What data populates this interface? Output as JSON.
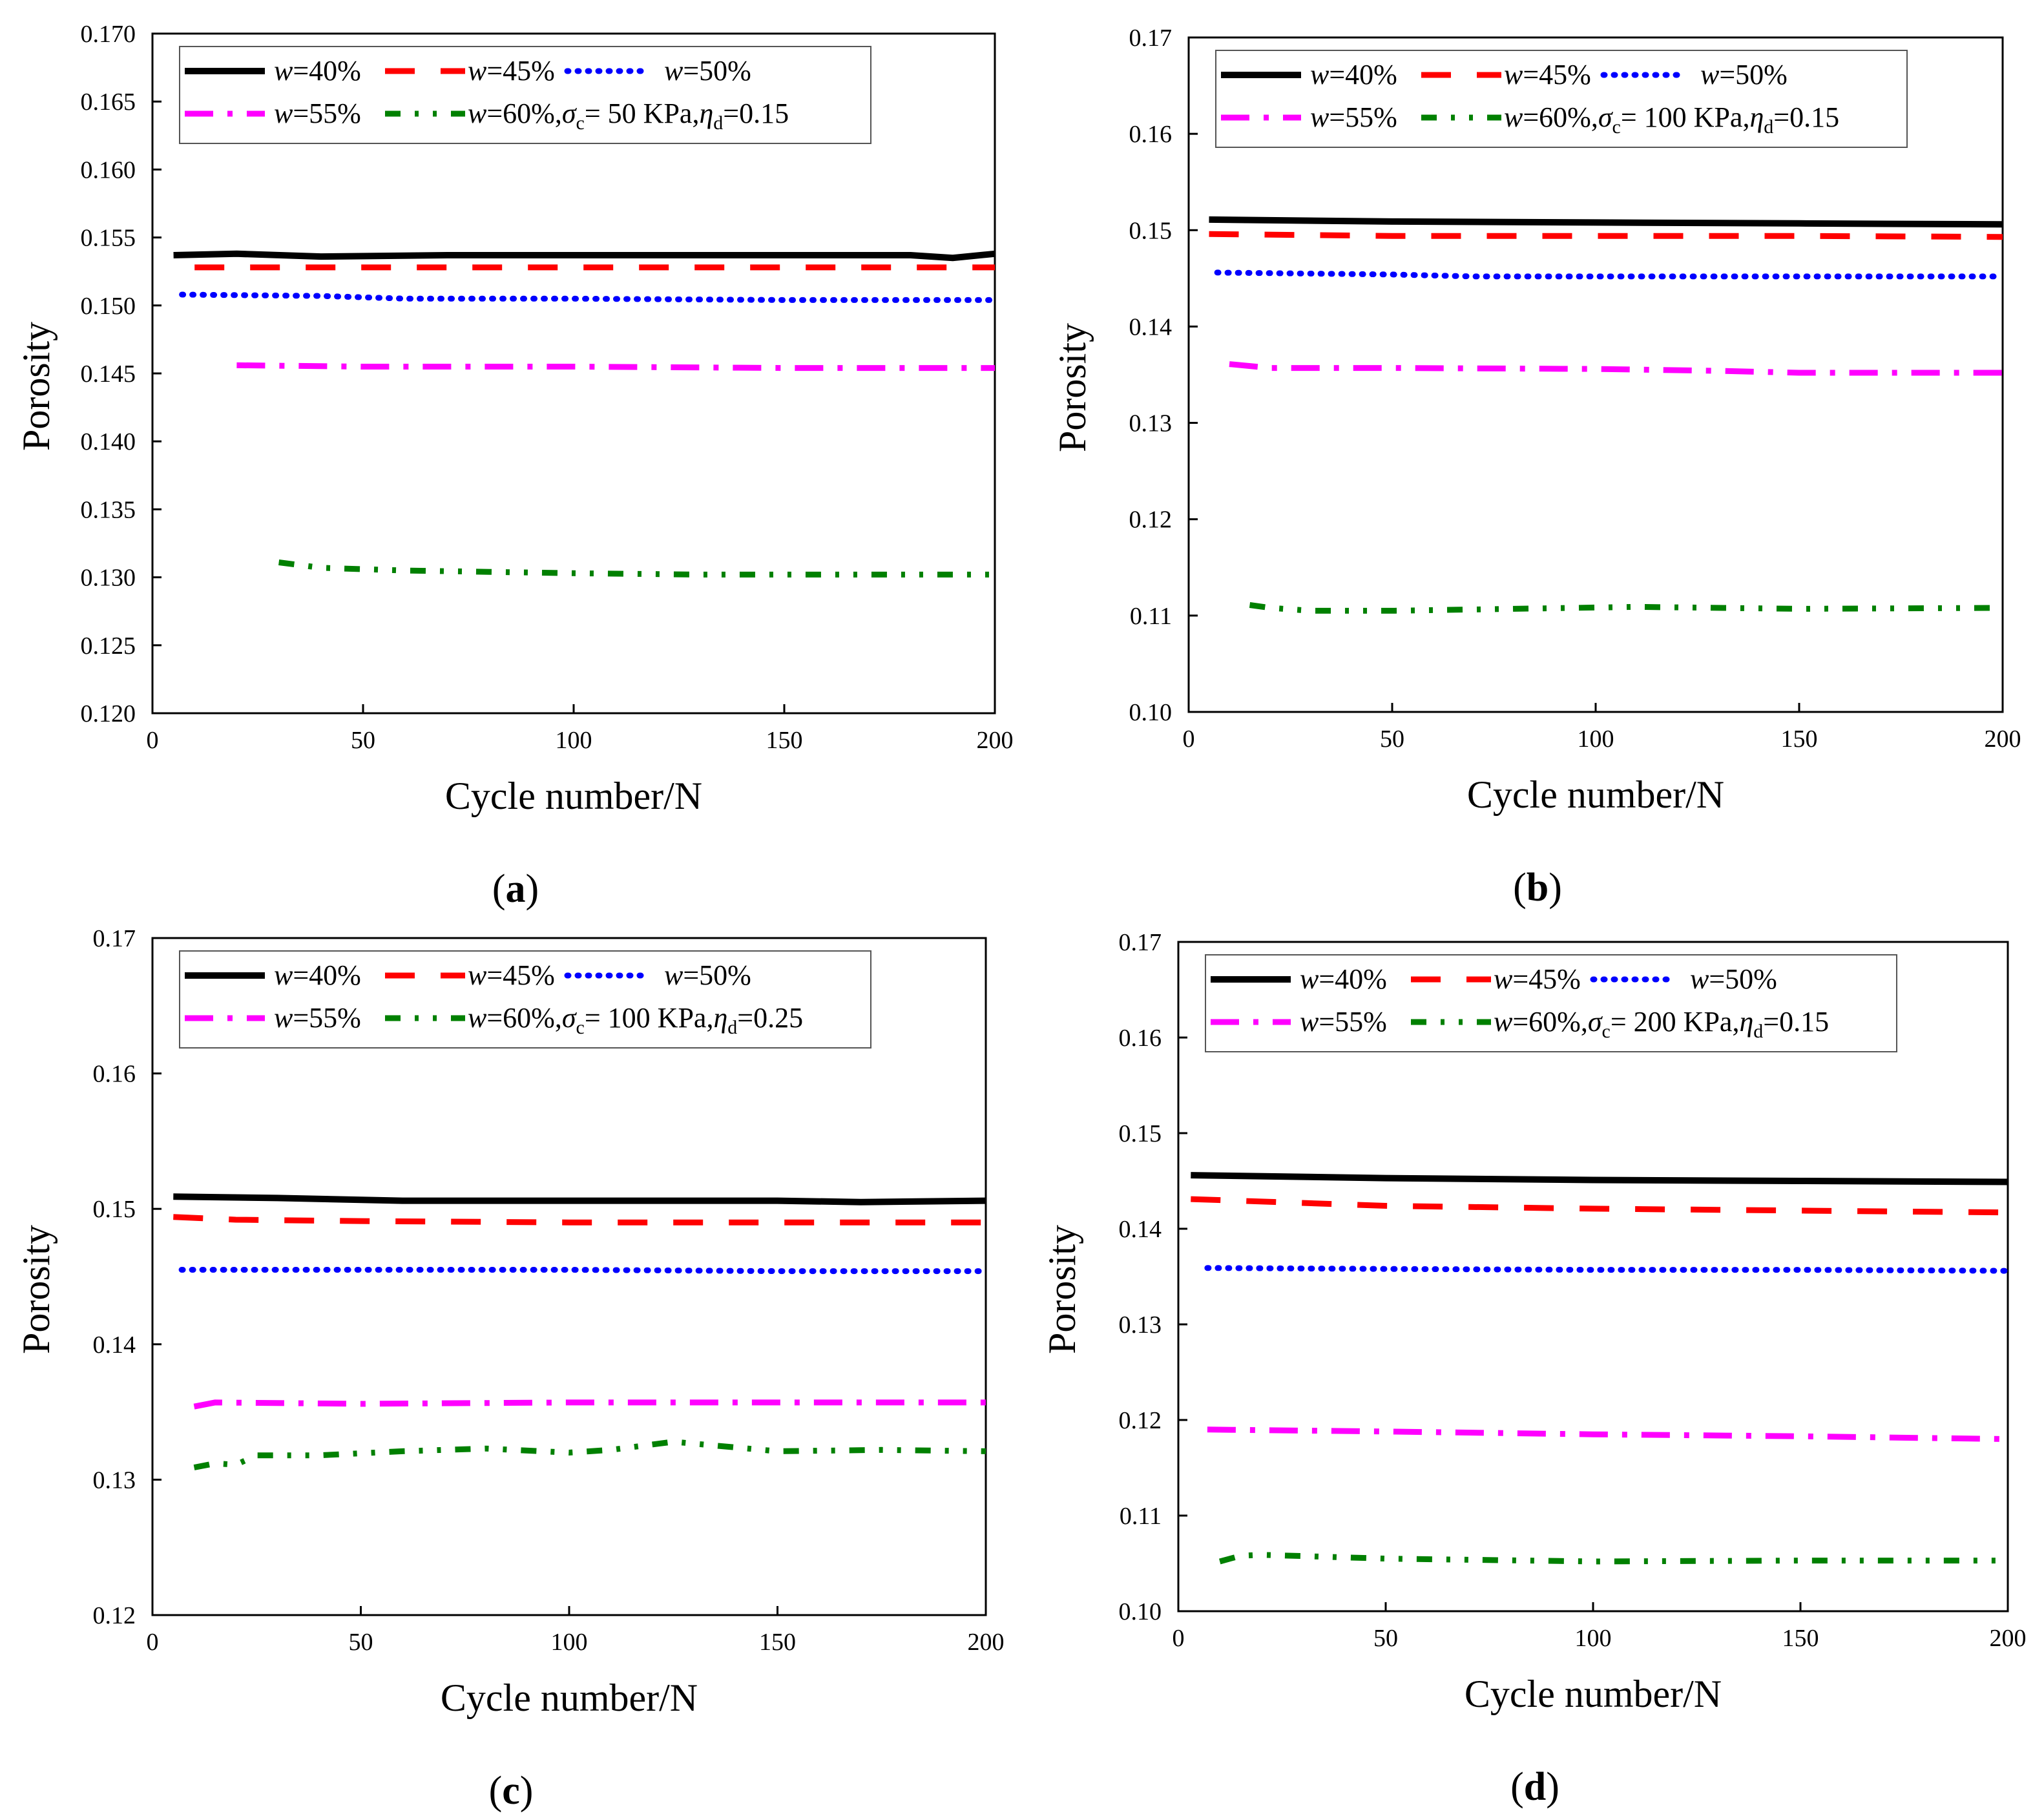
{
  "chart_data": [
    {
      "type": "line",
      "panel": "a",
      "panel_label": "a",
      "xlabel": "Cycle number/N",
      "ylabel": "Porosity",
      "xlim": [
        0,
        200
      ],
      "ylim": [
        0.12,
        0.17
      ],
      "xticks": [
        0,
        50,
        100,
        150,
        200
      ],
      "xtick_labels": [
        "0",
        "50",
        "100",
        "150",
        "200"
      ],
      "yticks": [
        0.12,
        0.125,
        0.13,
        0.135,
        0.14,
        0.145,
        0.15,
        0.155,
        0.16,
        0.165,
        0.17
      ],
      "ytick_labels": [
        "0.120",
        "0.125",
        "0.130",
        "0.135",
        "0.140",
        "0.145",
        "0.150",
        "0.155",
        "0.160",
        "0.165",
        "0.170"
      ],
      "condition": {
        "sigma_c": "50 KPa",
        "eta_d": "0.15"
      },
      "legend": {
        "position": "top",
        "condition_text": ",σc= 50 KPa,ηd=0.15",
        "entries": [
          "w=40%",
          "w=45%",
          "w=50%",
          "w=55%",
          "w=60%"
        ]
      },
      "series": [
        {
          "name": "w=40%",
          "color": "#000000",
          "style": "solid",
          "x": [
            5,
            20,
            40,
            70,
            100,
            150,
            180,
            190,
            200
          ],
          "y": [
            0.1537,
            0.1538,
            0.1536,
            0.1537,
            0.1537,
            0.1537,
            0.1537,
            0.1535,
            0.1538
          ]
        },
        {
          "name": "w=45%",
          "color": "#ff0000",
          "style": "dash",
          "x": [
            10,
            50,
            100,
            150,
            200
          ],
          "y": [
            0.1528,
            0.1528,
            0.1528,
            0.1528,
            0.1528
          ]
        },
        {
          "name": "w=50%",
          "color": "#0000ff",
          "style": "dot",
          "x": [
            7,
            40,
            60,
            100,
            150,
            200
          ],
          "y": [
            0.1508,
            0.1507,
            0.1505,
            0.1505,
            0.1504,
            0.1504
          ]
        },
        {
          "name": "w=55%",
          "color": "#ff00ff",
          "style": "dashdot",
          "x": [
            20,
            50,
            100,
            150,
            200
          ],
          "y": [
            0.1456,
            0.1455,
            0.1455,
            0.1454,
            0.1454
          ]
        },
        {
          "name": "w=60%",
          "color": "#008000",
          "style": "dashdotdot",
          "x": [
            30,
            40,
            60,
            80,
            100,
            130,
            160,
            200
          ],
          "y": [
            0.1311,
            0.1307,
            0.1305,
            0.1304,
            0.1303,
            0.1302,
            0.1302,
            0.1302
          ]
        }
      ]
    },
    {
      "type": "line",
      "panel": "b",
      "panel_label": "b",
      "xlabel": "Cycle number/N",
      "ylabel": "Porosity",
      "xlim": [
        0,
        200
      ],
      "ylim": [
        0.1,
        0.17
      ],
      "xticks": [
        0,
        50,
        100,
        150,
        200
      ],
      "xtick_labels": [
        "0",
        "50",
        "100",
        "150",
        "200"
      ],
      "yticks": [
        0.1,
        0.11,
        0.12,
        0.13,
        0.14,
        0.15,
        0.16,
        0.17
      ],
      "ytick_labels": [
        "0.10",
        "0.11",
        "0.12",
        "0.13",
        "0.14",
        "0.15",
        "0.16",
        "0.17"
      ],
      "condition": {
        "sigma_c": "100 KPa",
        "eta_d": "0.15"
      },
      "legend": {
        "position": "top",
        "condition_text": ",σc= 100 KPa,ηd=0.15",
        "entries": [
          "w=40%",
          "w=45%",
          "w=50%",
          "w=55%",
          "w=60%"
        ]
      },
      "series": [
        {
          "name": "w=40%",
          "color": "#000000",
          "style": "solid",
          "x": [
            5,
            50,
            100,
            150,
            200
          ],
          "y": [
            0.1511,
            0.1509,
            0.1508,
            0.1507,
            0.1506
          ]
        },
        {
          "name": "w=45%",
          "color": "#ff0000",
          "style": "dash",
          "x": [
            5,
            50,
            100,
            150,
            200
          ],
          "y": [
            0.1496,
            0.1494,
            0.1494,
            0.1494,
            0.1493
          ]
        },
        {
          "name": "w=50%",
          "color": "#0000ff",
          "style": "dot",
          "x": [
            7,
            50,
            70,
            100,
            150,
            200
          ],
          "y": [
            0.1456,
            0.1454,
            0.1452,
            0.1452,
            0.1452,
            0.1452
          ]
        },
        {
          "name": "w=55%",
          "color": "#ff00ff",
          "style": "dashdot",
          "x": [
            10,
            20,
            50,
            100,
            130,
            150,
            200
          ],
          "y": [
            0.1361,
            0.1357,
            0.1357,
            0.1356,
            0.1354,
            0.1352,
            0.1352
          ]
        },
        {
          "name": "w=60%",
          "color": "#008000",
          "style": "dashdotdot",
          "x": [
            15,
            20,
            30,
            50,
            80,
            110,
            150,
            200
          ],
          "y": [
            0.1111,
            0.1108,
            0.1105,
            0.1105,
            0.1107,
            0.1109,
            0.1107,
            0.1108
          ]
        }
      ]
    },
    {
      "type": "line",
      "panel": "c",
      "panel_label": "c",
      "xlabel": "Cycle number/N",
      "ylabel": "Porosity",
      "xlim": [
        0,
        200
      ],
      "ylim": [
        0.12,
        0.17
      ],
      "xticks": [
        0,
        50,
        100,
        150,
        200
      ],
      "xtick_labels": [
        "0",
        "50",
        "100",
        "150",
        "200"
      ],
      "yticks": [
        0.12,
        0.13,
        0.14,
        0.15,
        0.16,
        0.17
      ],
      "ytick_labels": [
        "0.12",
        "0.13",
        "0.14",
        "0.15",
        "0.16",
        "0.17"
      ],
      "condition": {
        "sigma_c": "100 KPa",
        "eta_d": "0.25"
      },
      "legend": {
        "position": "top",
        "condition_text": ",σc= 100 KPa,ηd=0.25",
        "entries": [
          "w=40%",
          "w=45%",
          "w=50%",
          "w=55%",
          "w=60%"
        ]
      },
      "series": [
        {
          "name": "w=40%",
          "color": "#000000",
          "style": "solid",
          "x": [
            5,
            30,
            60,
            100,
            150,
            170,
            200
          ],
          "y": [
            0.1509,
            0.1508,
            0.1506,
            0.1506,
            0.1506,
            0.1505,
            0.1506
          ]
        },
        {
          "name": "w=45%",
          "color": "#ff0000",
          "style": "dash",
          "x": [
            5,
            20,
            50,
            100,
            150,
            200
          ],
          "y": [
            0.1494,
            0.1492,
            0.1491,
            0.149,
            0.149,
            0.149
          ]
        },
        {
          "name": "w=50%",
          "color": "#0000ff",
          "style": "dot",
          "x": [
            7,
            50,
            100,
            150,
            200
          ],
          "y": [
            0.1455,
            0.1455,
            0.1455,
            0.1454,
            0.1454
          ]
        },
        {
          "name": "w=55%",
          "color": "#ff00ff",
          "style": "dashdot",
          "x": [
            10,
            15,
            50,
            100,
            150,
            200
          ],
          "y": [
            0.1354,
            0.1357,
            0.1356,
            0.1357,
            0.1357,
            0.1357
          ]
        },
        {
          "name": "w=60%",
          "color": "#008000",
          "style": "dashdotdot",
          "x": [
            10,
            15,
            20,
            25,
            40,
            60,
            80,
            100,
            110,
            125,
            150,
            175,
            200
          ],
          "y": [
            0.1309,
            0.1312,
            0.1311,
            0.1318,
            0.1318,
            0.1321,
            0.1323,
            0.132,
            0.1322,
            0.1328,
            0.1321,
            0.1322,
            0.1321
          ]
        }
      ]
    },
    {
      "type": "line",
      "panel": "d",
      "panel_label": "d",
      "xlabel": "Cycle number/N",
      "ylabel": "Porosity",
      "xlim": [
        0,
        200
      ],
      "ylim": [
        0.1,
        0.17
      ],
      "xticks": [
        0,
        50,
        100,
        150,
        200
      ],
      "xtick_labels": [
        "0",
        "50",
        "100",
        "150",
        "200"
      ],
      "yticks": [
        0.1,
        0.11,
        0.12,
        0.13,
        0.14,
        0.15,
        0.16,
        0.17
      ],
      "ytick_labels": [
        "0.10",
        "0.11",
        "0.12",
        "0.13",
        "0.14",
        "0.15",
        "0.16",
        "0.17"
      ],
      "condition": {
        "sigma_c": "200 KPa",
        "eta_d": "0.15"
      },
      "legend": {
        "position": "top",
        "condition_text": ",σc=200 KPa,ηd=0.15",
        "entries": [
          "w=40%",
          "w=45%",
          "w=50%",
          "w=55%",
          "w=60%"
        ]
      },
      "series": [
        {
          "name": "w=40%",
          "color": "#000000",
          "style": "solid",
          "x": [
            3,
            50,
            100,
            150,
            200
          ],
          "y": [
            0.1456,
            0.1453,
            0.1451,
            0.145,
            0.1449
          ]
        },
        {
          "name": "w=45%",
          "color": "#ff0000",
          "style": "dash",
          "x": [
            3,
            50,
            100,
            150,
            200
          ],
          "y": [
            0.1431,
            0.1424,
            0.1421,
            0.1419,
            0.1417
          ]
        },
        {
          "name": "w=50%",
          "color": "#0000ff",
          "style": "dot",
          "x": [
            7,
            50,
            100,
            150,
            200
          ],
          "y": [
            0.1359,
            0.1358,
            0.1357,
            0.1357,
            0.1356
          ]
        },
        {
          "name": "w=55%",
          "color": "#ff00ff",
          "style": "dashdot",
          "x": [
            7,
            50,
            100,
            150,
            200
          ],
          "y": [
            0.119,
            0.1188,
            0.1185,
            0.1183,
            0.118
          ]
        },
        {
          "name": "w=60%",
          "color": "#008000",
          "style": "dashdotdot",
          "x": [
            10,
            15,
            20,
            50,
            100,
            150,
            200
          ],
          "y": [
            0.1052,
            0.1058,
            0.1059,
            0.1055,
            0.1052,
            0.1053,
            0.1053
          ]
        }
      ]
    }
  ]
}
